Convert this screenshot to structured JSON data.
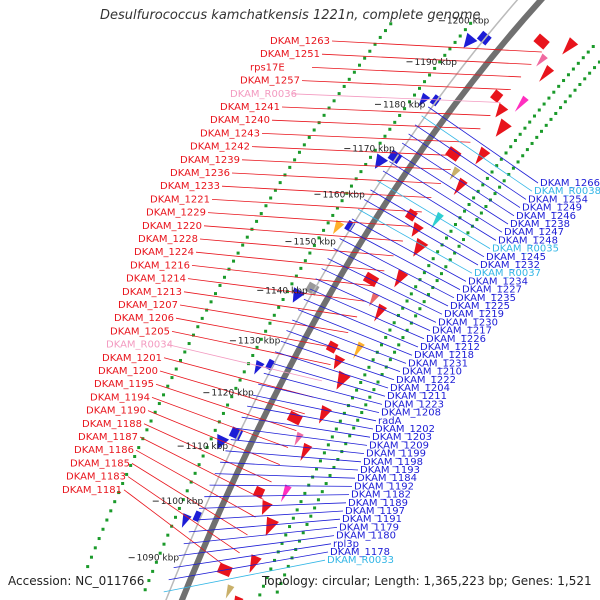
{
  "title": "Desulfurococcus kamchatkensis 1221n, complete genome",
  "footer": {
    "accession": "Accession: NC_011766",
    "topology": "Topology: circular; Length: 1,365,223 bp; Genes: 1,521"
  },
  "colors": {
    "left_gene": "#e8141c",
    "left_rna": "#f39ac0",
    "right_gene": "#1d1dd6",
    "right_rna": "#33b6e6",
    "backbone": "#707070",
    "dots": "#1a9a2a"
  },
  "kbp_ticks": [
    "1090 kbp",
    "1100 kbp",
    "1110 kbp",
    "1120 kbp",
    "1130 kbp",
    "1140 kbp",
    "1150 kbp",
    "1160 kbp",
    "1170 kbp",
    "1180 kbp",
    "1190 kbp",
    "1200 kbp"
  ],
  "left_labels": [
    {
      "text": "DKAM_1263",
      "type": "gene"
    },
    {
      "text": "DKAM_1251",
      "type": "gene"
    },
    {
      "text": "rps17E",
      "type": "gene"
    },
    {
      "text": "DKAM_1257",
      "type": "gene"
    },
    {
      "text": "DKAM_R0036",
      "type": "rna"
    },
    {
      "text": "DKAM_1241",
      "type": "gene"
    },
    {
      "text": "DKAM_1240",
      "type": "gene"
    },
    {
      "text": "DKAM_1243",
      "type": "gene"
    },
    {
      "text": "DKAM_1242",
      "type": "gene"
    },
    {
      "text": "DKAM_1239",
      "type": "gene"
    },
    {
      "text": "DKAM_1236",
      "type": "gene"
    },
    {
      "text": "DKAM_1233",
      "type": "gene"
    },
    {
      "text": "DKAM_1221",
      "type": "gene"
    },
    {
      "text": "DKAM_1229",
      "type": "gene"
    },
    {
      "text": "DKAM_1220",
      "type": "gene"
    },
    {
      "text": "DKAM_1228",
      "type": "gene"
    },
    {
      "text": "DKAM_1224",
      "type": "gene"
    },
    {
      "text": "DKAM_1216",
      "type": "gene"
    },
    {
      "text": "DKAM_1214",
      "type": "gene"
    },
    {
      "text": "DKAM_1213",
      "type": "gene"
    },
    {
      "text": "DKAM_1207",
      "type": "gene"
    },
    {
      "text": "DKAM_1206",
      "type": "gene"
    },
    {
      "text": "DKAM_1205",
      "type": "gene"
    },
    {
      "text": "DKAM_R0034",
      "type": "rna"
    },
    {
      "text": "DKAM_1201",
      "type": "gene"
    },
    {
      "text": "DKAM_1200",
      "type": "gene"
    },
    {
      "text": "DKAM_1195",
      "type": "gene"
    },
    {
      "text": "DKAM_1194",
      "type": "gene"
    },
    {
      "text": "DKAM_1190",
      "type": "gene"
    },
    {
      "text": "DKAM_1188",
      "type": "gene"
    },
    {
      "text": "DKAM_1187",
      "type": "gene"
    },
    {
      "text": "DKAM_1186",
      "type": "gene"
    },
    {
      "text": "DKAM_1185",
      "type": "gene"
    },
    {
      "text": "DKAM_1183",
      "type": "gene"
    },
    {
      "text": "DKAM_1181",
      "type": "gene"
    }
  ],
  "right_labels": [
    {
      "text": "DKAM_1266",
      "type": "gene"
    },
    {
      "text": "DKAM_R0038",
      "type": "rna"
    },
    {
      "text": "DKAM_1254",
      "type": "gene"
    },
    {
      "text": "DKAM_1249",
      "type": "gene"
    },
    {
      "text": "DKAM_1246",
      "type": "gene"
    },
    {
      "text": "DKAM_1238",
      "type": "gene"
    },
    {
      "text": "DKAM_1247",
      "type": "gene"
    },
    {
      "text": "DKAM_1248",
      "type": "gene"
    },
    {
      "text": "DKAM_R0035",
      "type": "rna"
    },
    {
      "text": "DKAM_1245",
      "type": "gene"
    },
    {
      "text": "DKAM_1232",
      "type": "gene"
    },
    {
      "text": "DKAM_R0037",
      "type": "rna"
    },
    {
      "text": "DKAM_1234",
      "type": "gene"
    },
    {
      "text": "DKAM_1227",
      "type": "gene"
    },
    {
      "text": "DKAM_1235",
      "type": "gene"
    },
    {
      "text": "DKAM_1225",
      "type": "gene"
    },
    {
      "text": "DKAM_1219",
      "type": "gene"
    },
    {
      "text": "DKAM_1230",
      "type": "gene"
    },
    {
      "text": "DKAM_1217",
      "type": "gene"
    },
    {
      "text": "DKAM_1226",
      "type": "gene"
    },
    {
      "text": "DKAM_1212",
      "type": "gene"
    },
    {
      "text": "DKAM_1218",
      "type": "gene"
    },
    {
      "text": "DKAM_1231",
      "type": "gene"
    },
    {
      "text": "DKAM_1210",
      "type": "gene"
    },
    {
      "text": "DKAM_1222",
      "type": "gene"
    },
    {
      "text": "DKAM_1204",
      "type": "gene"
    },
    {
      "text": "DKAM_1211",
      "type": "gene"
    },
    {
      "text": "DKAM_1223",
      "type": "gene"
    },
    {
      "text": "DKAM_1208",
      "type": "gene"
    },
    {
      "text": "radA",
      "type": "gene"
    },
    {
      "text": "DKAM_1202",
      "type": "gene"
    },
    {
      "text": "DKAM_1203",
      "type": "gene"
    },
    {
      "text": "DKAM_1209",
      "type": "gene"
    },
    {
      "text": "DKAM_1199",
      "type": "gene"
    },
    {
      "text": "DKAM_1198",
      "type": "gene"
    },
    {
      "text": "DKAM_1193",
      "type": "gene"
    },
    {
      "text": "DKAM_1184",
      "type": "gene"
    },
    {
      "text": "DKAM_1192",
      "type": "gene"
    },
    {
      "text": "DKAM_1182",
      "type": "gene"
    },
    {
      "text": "DKAM_1189",
      "type": "gene"
    },
    {
      "text": "DKAM_1197",
      "type": "gene"
    },
    {
      "text": "DKAM_1191",
      "type": "gene"
    },
    {
      "text": "DKAM_1179",
      "type": "gene"
    },
    {
      "text": "DKAM_1180",
      "type": "gene"
    },
    {
      "text": "rpl3p",
      "type": "gene"
    },
    {
      "text": "DKAM_1178",
      "type": "gene"
    },
    {
      "text": "DKAM_R0033",
      "type": "rna"
    }
  ]
}
